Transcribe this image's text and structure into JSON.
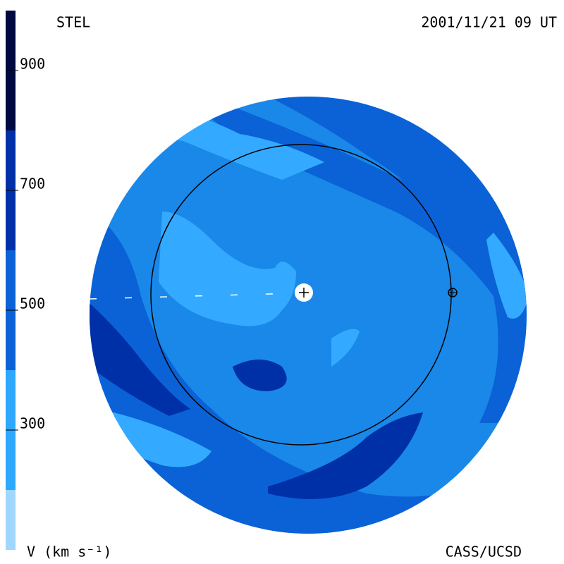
{
  "header": {
    "left": "STEL",
    "right": "2001/11/21 09 UT"
  },
  "colorbar": {
    "label": "V (km s⁻¹)",
    "lim": [
      100,
      1000
    ],
    "ticks": [
      300,
      500,
      700,
      900
    ],
    "bands": [
      {
        "from": 100,
        "to": 200,
        "color": "#9fd7ff"
      },
      {
        "from": 200,
        "to": 400,
        "color": "#2ea8ff"
      },
      {
        "from": 400,
        "to": 600,
        "color": "#0a62d6"
      },
      {
        "from": 600,
        "to": 800,
        "color": "#0030a8"
      },
      {
        "from": 800,
        "to": 1000,
        "color": "#000a40"
      }
    ]
  },
  "footer": {
    "right": "CASS/UCSD"
  }
}
